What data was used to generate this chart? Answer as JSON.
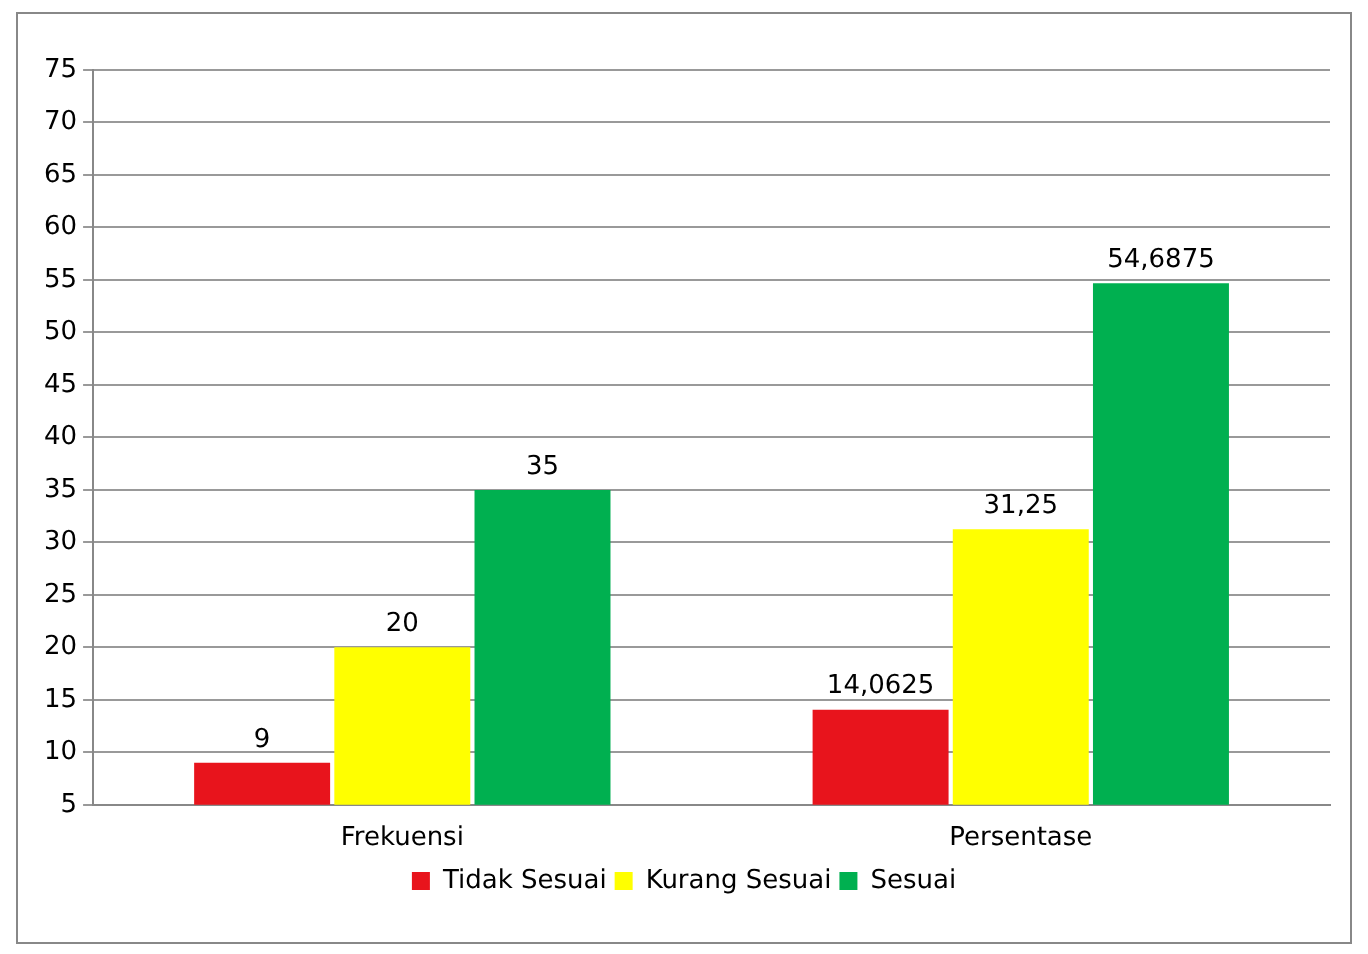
{
  "chart_data": {
    "type": "bar",
    "categories": [
      "Frekuensi",
      "Persentase"
    ],
    "series": [
      {
        "name": "Tidak Sesuai",
        "color": "#e8141c",
        "values": [
          9,
          14.0625
        ],
        "value_labels": [
          "9",
          "14,0625"
        ]
      },
      {
        "name": "Kurang Sesuai",
        "color": "#ffff00",
        "values": [
          20,
          31.25
        ],
        "value_labels": [
          "20",
          "31,25"
        ]
      },
      {
        "name": "Sesuai",
        "color": "#00b050",
        "values": [
          35,
          54.6875
        ],
        "value_labels": [
          "35",
          "54,6875"
        ]
      }
    ],
    "ylim": [
      5,
      75
    ],
    "yticks": [
      5,
      10,
      15,
      20,
      25,
      30,
      35,
      40,
      45,
      50,
      55,
      60,
      65,
      70,
      75
    ],
    "grid": "y",
    "legend": "bottom"
  }
}
